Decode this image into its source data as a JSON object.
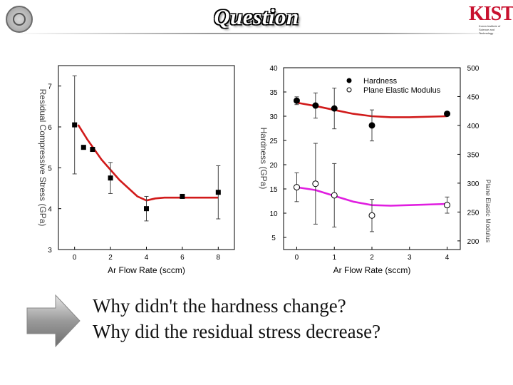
{
  "slide": {
    "title": "Question",
    "questions": [
      "Why didn't the hardness change?",
      "Why did the residual stress decrease?"
    ]
  },
  "logos": {
    "right_mark": "KIST",
    "right_sub": "Korea Institute of Science and Technology"
  },
  "chart_data": [
    {
      "type": "scatter",
      "xlabel": "Ar Flow Rate (sccm)",
      "ylabel": "Residual Compressive Stress (GPa)",
      "xticks": [
        0,
        2,
        4,
        6,
        8
      ],
      "yticks": [
        3,
        4,
        5,
        6,
        7
      ],
      "xlim": [
        -0.9,
        8.9
      ],
      "ylim": [
        3,
        7.5
      ],
      "series": [
        {
          "points": [
            {
              "x": 0,
              "y": 6.05,
              "err": 1.2
            },
            {
              "x": 0.5,
              "y": 5.5,
              "err": 0
            },
            {
              "x": 1,
              "y": 5.45,
              "err": 0
            },
            {
              "x": 2,
              "y": 4.75,
              "err": 0.38
            },
            {
              "x": 4,
              "y": 4.0,
              "err": 0.3
            },
            {
              "x": 6,
              "y": 4.3,
              "err": 0
            },
            {
              "x": 8,
              "y": 4.4,
              "err": 0.65
            }
          ],
          "fit": [
            [
              0.2,
              6.05
            ],
            [
              0.7,
              5.7
            ],
            [
              1.5,
              5.2
            ],
            [
              2.5,
              4.7
            ],
            [
              3.5,
              4.3
            ],
            [
              4.0,
              4.2
            ],
            [
              4.5,
              4.25
            ],
            [
              5,
              4.27
            ],
            [
              6,
              4.27
            ],
            [
              8,
              4.27
            ]
          ],
          "marker": "filled-square",
          "marker_color": "#000000",
          "fit_color": "#d11a1a"
        }
      ],
      "grid": false
    },
    {
      "type": "scatter",
      "xlabel": "Ar Flow Rate (sccm)",
      "ylabel": "Hardness (GPa)",
      "y2label": "Plane Elastic Modulus",
      "xticks": [
        0,
        1,
        2,
        3,
        4
      ],
      "yticks": [
        5,
        10,
        15,
        20,
        25,
        30,
        35,
        40
      ],
      "y2ticks": [
        200,
        250,
        300,
        350,
        400,
        450,
        500
      ],
      "xlim": [
        -0.35,
        4.35
      ],
      "ylim": [
        2.5,
        40
      ],
      "y2lim": [
        185,
        500
      ],
      "legend": {
        "position": "top-right"
      },
      "series": [
        {
          "name": "Hardness",
          "axis": "left",
          "marker": "filled-circle",
          "marker_color": "#000000",
          "fit_color": "#d11a1a",
          "points": [
            {
              "x": 0,
              "y": 33.2,
              "err": 0.8
            },
            {
              "x": 0.5,
              "y": 32.2,
              "err": 2.6
            },
            {
              "x": 1,
              "y": 31.6,
              "err": 4.2
            },
            {
              "x": 2,
              "y": 28.1,
              "err": 3.2
            },
            {
              "x": 4,
              "y": 30.5,
              "err": 0
            }
          ],
          "fit": [
            [
              0,
              32.8
            ],
            [
              0.5,
              32.1
            ],
            [
              1,
              31.3
            ],
            [
              1.5,
              30.5
            ],
            [
              2,
              30.0
            ],
            [
              2.5,
              29.8
            ],
            [
              3,
              29.8
            ],
            [
              4,
              30.0
            ]
          ]
        },
        {
          "name": "Plane Elastic Modulus",
          "axis": "right",
          "marker": "open-circle",
          "marker_color": "#000000",
          "fit_color": "#e01ee0",
          "points": [
            {
              "x": 0,
              "y": 293,
              "err": 25
            },
            {
              "x": 0.5,
              "y": 299,
              "err": 70
            },
            {
              "x": 1,
              "y": 279,
              "err": 55
            },
            {
              "x": 2,
              "y": 244,
              "err": 28
            },
            {
              "x": 4,
              "y": 262,
              "err": 14
            }
          ],
          "fit": [
            [
              0,
              293
            ],
            [
              0.5,
              288
            ],
            [
              1,
              278
            ],
            [
              1.5,
              268
            ],
            [
              2,
              262
            ],
            [
              2.5,
              261
            ],
            [
              3,
              262
            ],
            [
              4,
              264
            ]
          ]
        }
      ],
      "grid": false
    }
  ]
}
